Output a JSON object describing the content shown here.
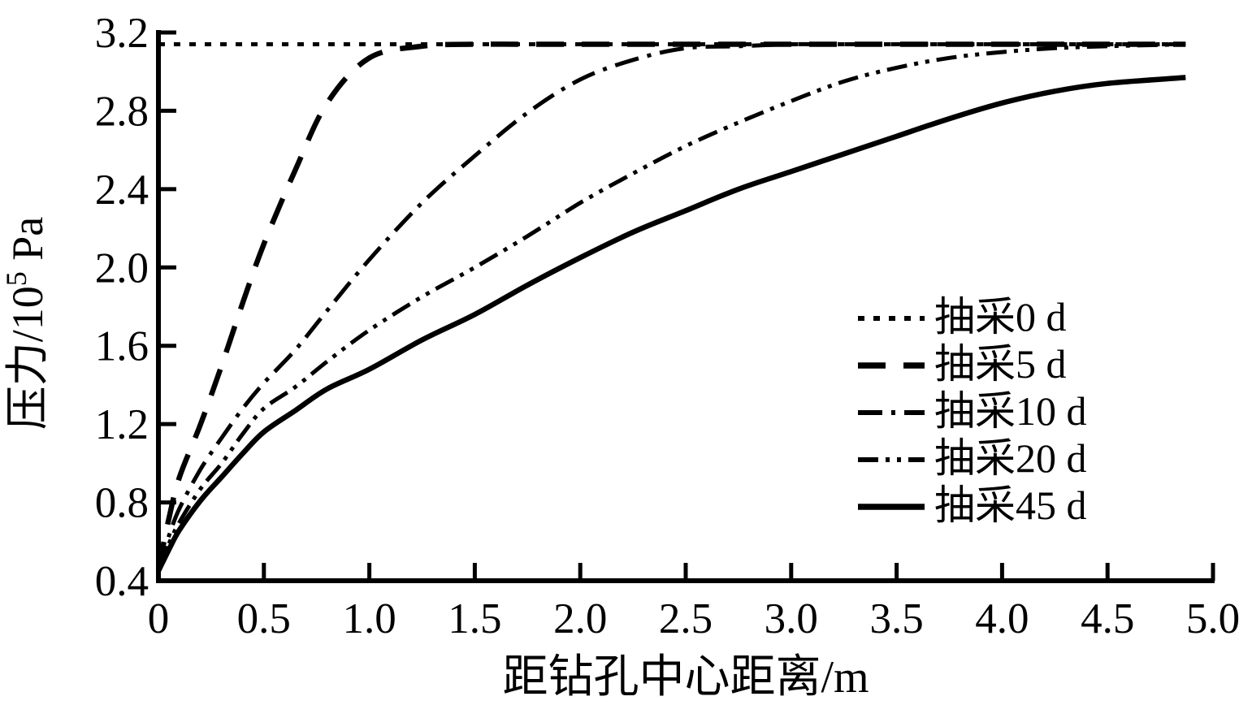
{
  "figure": {
    "background": "#ffffff",
    "ink": "#000000"
  },
  "chart_data": {
    "type": "line",
    "title": "",
    "xlabel": "距钻孔中心距离/m",
    "ylabel": "压力/10⁵ Pa",
    "ylabel_base": "压力/10",
    "ylabel_sup": "5",
    "ylabel_unit": " Pa",
    "xlim": [
      0,
      5.0
    ],
    "ylim": [
      0.4,
      3.2
    ],
    "grid": false,
    "legend_position": "inside-right-middle",
    "x_tick_values": [
      0,
      0.5,
      1.0,
      1.5,
      2.0,
      2.5,
      3.0,
      3.5,
      4.0,
      4.5,
      5.0
    ],
    "x_tick_labels": [
      "0",
      "0.5",
      "1.0",
      "1.5",
      "2.0",
      "2.5",
      "3.0",
      "3.5",
      "4.0",
      "4.5",
      "5.0"
    ],
    "y_tick_values": [
      0.4,
      0.8,
      1.2,
      1.6,
      2.0,
      2.4,
      2.8,
      3.2
    ],
    "y_tick_labels": [
      "0.4",
      "0.8",
      "1.2",
      "1.6",
      "2.0",
      "2.4",
      "2.8",
      "3.2"
    ],
    "x": [
      0,
      0.05,
      0.1,
      0.2,
      0.3,
      0.4,
      0.5,
      0.65,
      0.8,
      1.0,
      1.25,
      1.5,
      1.75,
      2.0,
      2.25,
      2.5,
      2.75,
      3.0,
      3.25,
      3.5,
      3.75,
      4.0,
      4.25,
      4.5,
      4.87
    ],
    "series": [
      {
        "name": "抽采0 d",
        "style": "dotted",
        "values": [
          3.14,
          3.14,
          3.14,
          3.14,
          3.14,
          3.14,
          3.14,
          3.14,
          3.14,
          3.14,
          3.14,
          3.14,
          3.14,
          3.14,
          3.14,
          3.14,
          3.14,
          3.14,
          3.14,
          3.14,
          3.14,
          3.14,
          3.14,
          3.14,
          3.14
        ]
      },
      {
        "name": "抽采5 d",
        "style": "dashed",
        "values": [
          0.46,
          0.72,
          0.93,
          1.2,
          1.5,
          1.82,
          2.12,
          2.5,
          2.84,
          3.07,
          3.13,
          3.14,
          3.14,
          3.14,
          3.14,
          3.14,
          3.14,
          3.14,
          3.14,
          3.14,
          3.14,
          3.14,
          3.14,
          3.14,
          3.14
        ]
      },
      {
        "name": "抽采10 d",
        "style": "dashdot",
        "values": [
          0.46,
          0.63,
          0.77,
          0.97,
          1.13,
          1.28,
          1.41,
          1.58,
          1.78,
          2.04,
          2.33,
          2.57,
          2.79,
          2.96,
          3.06,
          3.12,
          3.13,
          3.14,
          3.14,
          3.14,
          3.14,
          3.14,
          3.14,
          3.14,
          3.14
        ]
      },
      {
        "name": "抽采20 d",
        "style": "dashdotdot",
        "values": [
          0.46,
          0.59,
          0.7,
          0.87,
          1.0,
          1.15,
          1.28,
          1.39,
          1.52,
          1.68,
          1.85,
          2.0,
          2.16,
          2.33,
          2.48,
          2.62,
          2.74,
          2.85,
          2.95,
          3.02,
          3.07,
          3.1,
          3.12,
          3.13,
          3.14
        ]
      },
      {
        "name": "抽采45 d",
        "style": "solid",
        "values": [
          0.45,
          0.56,
          0.66,
          0.81,
          0.93,
          1.05,
          1.16,
          1.27,
          1.38,
          1.48,
          1.63,
          1.76,
          1.91,
          2.05,
          2.18,
          2.29,
          2.4,
          2.49,
          2.58,
          2.67,
          2.76,
          2.84,
          2.9,
          2.94,
          2.97
        ]
      }
    ]
  }
}
